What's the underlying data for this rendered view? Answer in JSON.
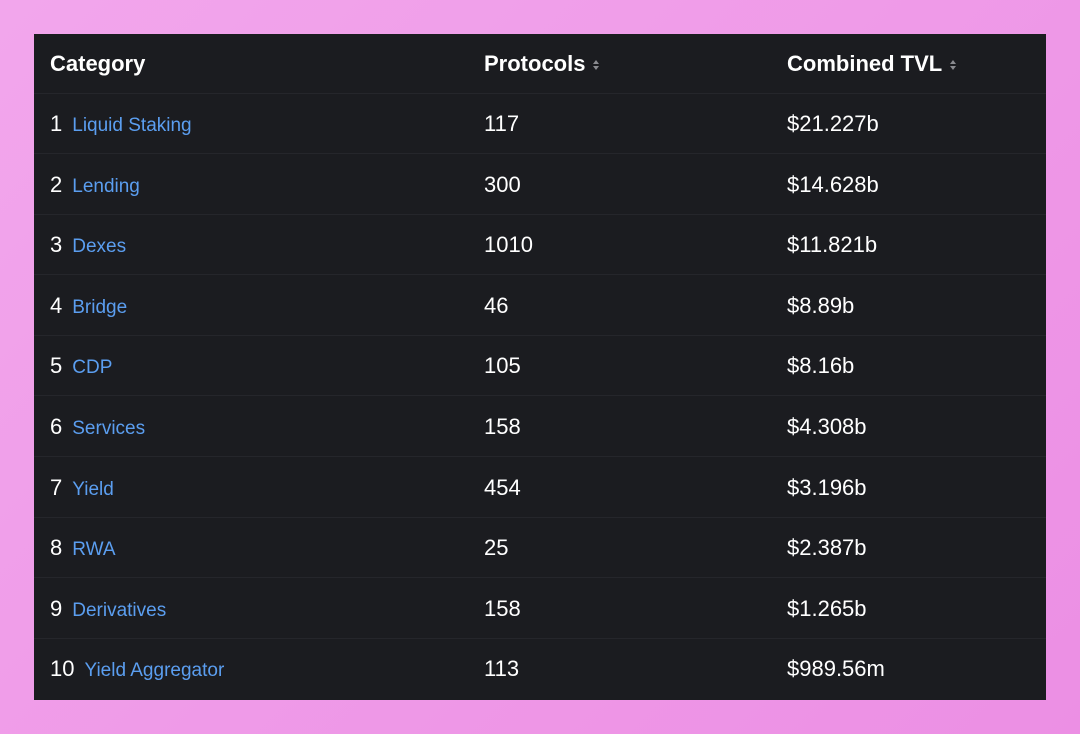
{
  "table": {
    "headers": [
      "Category",
      "Protocols",
      "Combined TVL"
    ],
    "rows": [
      {
        "rank": 1,
        "name": "Liquid Staking",
        "protocols": 117,
        "tvl": "$21.227b"
      },
      {
        "rank": 2,
        "name": "Lending",
        "protocols": 300,
        "tvl": "$14.628b"
      },
      {
        "rank": 3,
        "name": "Dexes",
        "protocols": 1010,
        "tvl": "$11.821b"
      },
      {
        "rank": 4,
        "name": "Bridge",
        "protocols": 46,
        "tvl": "$8.89b"
      },
      {
        "rank": 5,
        "name": "CDP",
        "protocols": 105,
        "tvl": "$8.16b"
      },
      {
        "rank": 6,
        "name": "Services",
        "protocols": 158,
        "tvl": "$4.308b"
      },
      {
        "rank": 7,
        "name": "Yield",
        "protocols": 454,
        "tvl": "$3.196b"
      },
      {
        "rank": 8,
        "name": "RWA",
        "protocols": 25,
        "tvl": "$2.387b"
      },
      {
        "rank": 9,
        "name": "Derivatives",
        "protocols": 158,
        "tvl": "$1.265b"
      },
      {
        "rank": 10,
        "name": "Yield Aggregator",
        "protocols": 113,
        "tvl": "$989.56m"
      }
    ]
  }
}
